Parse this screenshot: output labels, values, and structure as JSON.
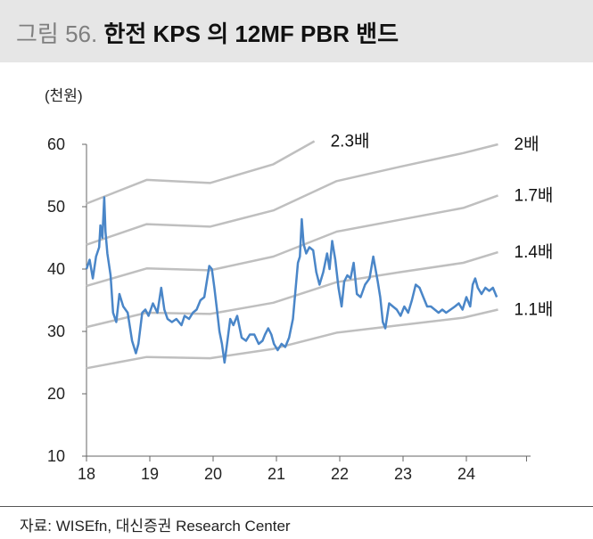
{
  "header": {
    "figure_number": "그림 56.",
    "title": "한전 KPS 의 12MF PBR 밴드"
  },
  "source": "자료: WISEfn, 대신증권 Research Center",
  "chart_data": {
    "type": "line",
    "unit_label": "(천원)",
    "ylim": [
      10,
      60
    ],
    "yticks": [
      10,
      20,
      30,
      40,
      50,
      60
    ],
    "xlim": [
      2018,
      2024.95
    ],
    "xticks": [
      {
        "value": 2018,
        "label": "18"
      },
      {
        "value": 2019,
        "label": "19"
      },
      {
        "value": 2020,
        "label": "20"
      },
      {
        "value": 2021,
        "label": "21"
      },
      {
        "value": 2022,
        "label": "22"
      },
      {
        "value": 2023,
        "label": "23"
      },
      {
        "value": 2024,
        "label": "24"
      }
    ],
    "colors": {
      "price": "#4a86c8",
      "band": "#bfbfbf",
      "axis": "#666666"
    },
    "bands": [
      {
        "label": "2.3배",
        "points": [
          [
            2018.0,
            50.5
          ],
          [
            2018.95,
            54.3
          ],
          [
            2019.95,
            53.8
          ],
          [
            2020.95,
            56.8
          ],
          [
            2021.6,
            60.5
          ]
        ]
      },
      {
        "label": "2배",
        "points": [
          [
            2018.0,
            43.9
          ],
          [
            2018.95,
            47.2
          ],
          [
            2019.95,
            46.8
          ],
          [
            2020.95,
            49.4
          ],
          [
            2021.95,
            54.1
          ],
          [
            2022.95,
            56.4
          ],
          [
            2023.95,
            58.6
          ],
          [
            2024.5,
            60.0
          ]
        ]
      },
      {
        "label": "1.7배",
        "points": [
          [
            2018.0,
            37.3
          ],
          [
            2018.95,
            40.1
          ],
          [
            2019.95,
            39.8
          ],
          [
            2020.95,
            42.0
          ],
          [
            2021.95,
            46.0
          ],
          [
            2022.95,
            47.9
          ],
          [
            2023.95,
            49.8
          ],
          [
            2024.5,
            51.8
          ]
        ]
      },
      {
        "label": "1.4배",
        "points": [
          [
            2018.0,
            30.7
          ],
          [
            2018.95,
            33.0
          ],
          [
            2019.95,
            32.8
          ],
          [
            2020.95,
            34.6
          ],
          [
            2021.95,
            37.9
          ],
          [
            2022.95,
            39.5
          ],
          [
            2023.95,
            41.0
          ],
          [
            2024.5,
            42.7
          ]
        ]
      },
      {
        "label": "1.1배",
        "points": [
          [
            2018.0,
            24.1
          ],
          [
            2018.95,
            25.9
          ],
          [
            2019.95,
            25.7
          ],
          [
            2020.95,
            27.2
          ],
          [
            2021.95,
            29.8
          ],
          [
            2022.95,
            31.0
          ],
          [
            2023.95,
            32.2
          ],
          [
            2024.5,
            33.5
          ]
        ]
      }
    ],
    "series": [
      {
        "values": [
          [
            2018.0,
            40.0
          ],
          [
            2018.05,
            41.5
          ],
          [
            2018.1,
            38.5
          ],
          [
            2018.15,
            42.0
          ],
          [
            2018.2,
            43.5
          ],
          [
            2018.22,
            47.0
          ],
          [
            2018.25,
            45.0
          ],
          [
            2018.28,
            51.5
          ],
          [
            2018.3,
            46.0
          ],
          [
            2018.33,
            42.5
          ],
          [
            2018.38,
            39.0
          ],
          [
            2018.42,
            33.0
          ],
          [
            2018.47,
            31.5
          ],
          [
            2018.52,
            36.0
          ],
          [
            2018.58,
            34.0
          ],
          [
            2018.65,
            33.0
          ],
          [
            2018.72,
            28.5
          ],
          [
            2018.78,
            26.5
          ],
          [
            2018.82,
            28.0
          ],
          [
            2018.88,
            33.0
          ],
          [
            2018.93,
            33.5
          ],
          [
            2018.98,
            32.5
          ],
          [
            2019.05,
            34.5
          ],
          [
            2019.12,
            33.0
          ],
          [
            2019.18,
            37.0
          ],
          [
            2019.23,
            33.5
          ],
          [
            2019.28,
            32.0
          ],
          [
            2019.35,
            31.5
          ],
          [
            2019.42,
            32.0
          ],
          [
            2019.5,
            31.0
          ],
          [
            2019.55,
            32.5
          ],
          [
            2019.62,
            32.0
          ],
          [
            2019.68,
            33.0
          ],
          [
            2019.74,
            33.5
          ],
          [
            2019.8,
            35.0
          ],
          [
            2019.86,
            35.5
          ],
          [
            2019.9,
            38.0
          ],
          [
            2019.94,
            40.5
          ],
          [
            2019.98,
            40.0
          ],
          [
            2020.02,
            37.0
          ],
          [
            2020.06,
            33.5
          ],
          [
            2020.1,
            30.0
          ],
          [
            2020.14,
            28.0
          ],
          [
            2020.18,
            25.0
          ],
          [
            2020.22,
            28.0
          ],
          [
            2020.27,
            32.0
          ],
          [
            2020.32,
            31.0
          ],
          [
            2020.38,
            32.5
          ],
          [
            2020.45,
            29.0
          ],
          [
            2020.52,
            28.5
          ],
          [
            2020.58,
            29.5
          ],
          [
            2020.65,
            29.5
          ],
          [
            2020.72,
            28.0
          ],
          [
            2020.78,
            28.5
          ],
          [
            2020.82,
            29.5
          ],
          [
            2020.87,
            30.5
          ],
          [
            2020.92,
            29.5
          ],
          [
            2020.96,
            28.0
          ],
          [
            2021.02,
            27.0
          ],
          [
            2021.08,
            28.0
          ],
          [
            2021.14,
            27.5
          ],
          [
            2021.2,
            29.0
          ],
          [
            2021.26,
            32.0
          ],
          [
            2021.3,
            36.5
          ],
          [
            2021.34,
            41.0
          ],
          [
            2021.37,
            42.0
          ],
          [
            2021.4,
            48.0
          ],
          [
            2021.43,
            44.0
          ],
          [
            2021.47,
            42.5
          ],
          [
            2021.52,
            43.5
          ],
          [
            2021.58,
            43.0
          ],
          [
            2021.63,
            39.5
          ],
          [
            2021.68,
            37.5
          ],
          [
            2021.74,
            39.5
          ],
          [
            2021.8,
            42.5
          ],
          [
            2021.84,
            40.0
          ],
          [
            2021.88,
            44.5
          ],
          [
            2021.93,
            41.5
          ],
          [
            2021.98,
            37.0
          ],
          [
            2022.03,
            34.0
          ],
          [
            2022.07,
            38.0
          ],
          [
            2022.12,
            39.0
          ],
          [
            2022.17,
            38.5
          ],
          [
            2022.22,
            41.0
          ],
          [
            2022.27,
            36.0
          ],
          [
            2022.33,
            35.5
          ],
          [
            2022.4,
            37.5
          ],
          [
            2022.47,
            38.5
          ],
          [
            2022.53,
            42.0
          ],
          [
            2022.6,
            38.0
          ],
          [
            2022.64,
            35.5
          ],
          [
            2022.68,
            31.5
          ],
          [
            2022.72,
            30.5
          ],
          [
            2022.78,
            34.5
          ],
          [
            2022.84,
            34.0
          ],
          [
            2022.9,
            33.5
          ],
          [
            2022.96,
            32.5
          ],
          [
            2023.02,
            34.0
          ],
          [
            2023.08,
            33.0
          ],
          [
            2023.14,
            35.0
          ],
          [
            2023.2,
            37.5
          ],
          [
            2023.26,
            37.0
          ],
          [
            2023.32,
            35.5
          ],
          [
            2023.38,
            34.0
          ],
          [
            2023.44,
            34.0
          ],
          [
            2023.5,
            33.5
          ],
          [
            2023.56,
            33.0
          ],
          [
            2023.62,
            33.5
          ],
          [
            2023.68,
            33.0
          ],
          [
            2023.75,
            33.5
          ],
          [
            2023.82,
            34.0
          ],
          [
            2023.88,
            34.5
          ],
          [
            2023.94,
            33.5
          ],
          [
            2024.0,
            35.5
          ],
          [
            2024.06,
            34.0
          ],
          [
            2024.1,
            37.5
          ],
          [
            2024.14,
            38.5
          ],
          [
            2024.18,
            37.0
          ],
          [
            2024.24,
            36.0
          ],
          [
            2024.3,
            37.0
          ],
          [
            2024.36,
            36.5
          ],
          [
            2024.42,
            37.0
          ],
          [
            2024.48,
            35.5
          ]
        ]
      }
    ]
  }
}
